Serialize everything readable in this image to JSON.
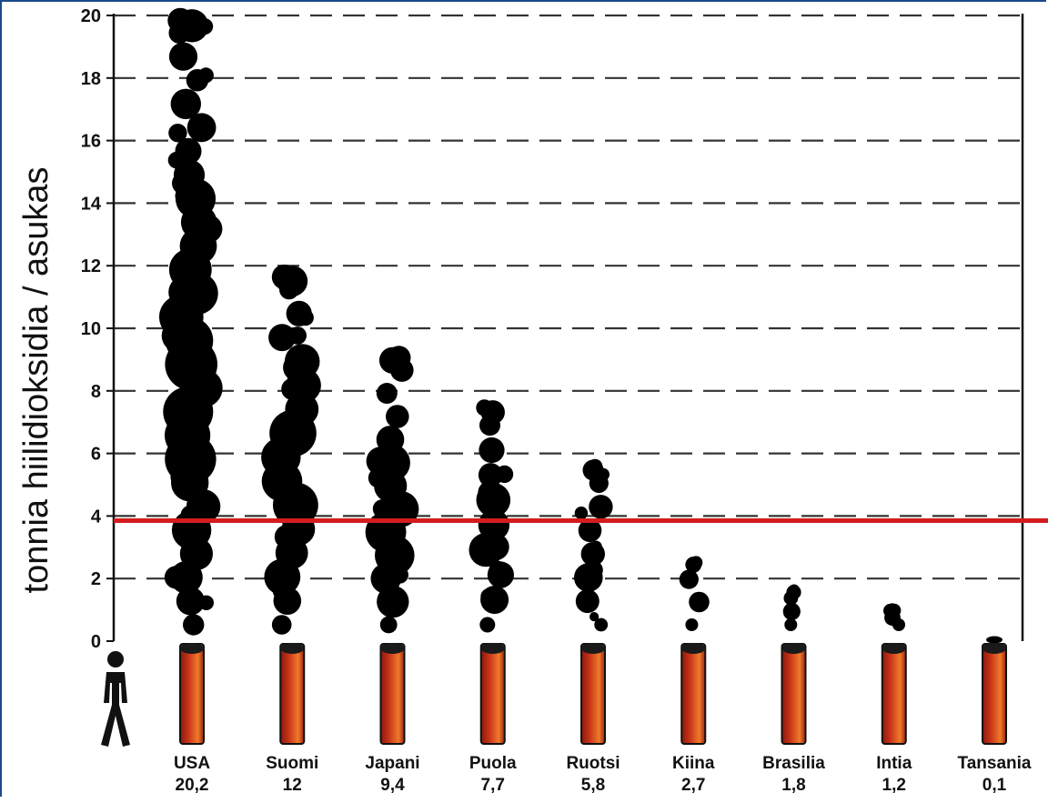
{
  "chart_data": {
    "type": "bar",
    "ylabel": "tonnia hiilidioksidia  / asukas",
    "ylim": [
      0,
      20
    ],
    "yticks": [
      0,
      2,
      4,
      6,
      8,
      10,
      12,
      14,
      16,
      18,
      20
    ],
    "grid": "horizontal-dashed",
    "categories": [
      "USA",
      "Suomi",
      "Japani",
      "Puola",
      "Ruotsi",
      "Kiina",
      "Brasilia",
      "Intia",
      "Tansania"
    ],
    "value_labels": [
      "20,2",
      "12",
      "9,4",
      "7,7",
      "5,8",
      "2,7",
      "1,8",
      "1,2",
      "0,1"
    ],
    "values": [
      20.2,
      12,
      9.4,
      7.7,
      5.8,
      2.7,
      1.8,
      1.2,
      0.1
    ],
    "reference_line": {
      "value": 3.85,
      "color": "#d21e1e"
    },
    "colors": {
      "smoke": "#000000",
      "chimney": "#c8341a",
      "chimney_highlight": "#f07a2a",
      "axis": "#111111"
    },
    "marks": {
      "unit_icon": "person-icon",
      "bar_style": "smoke-plume",
      "bar_base": "chimney"
    }
  }
}
